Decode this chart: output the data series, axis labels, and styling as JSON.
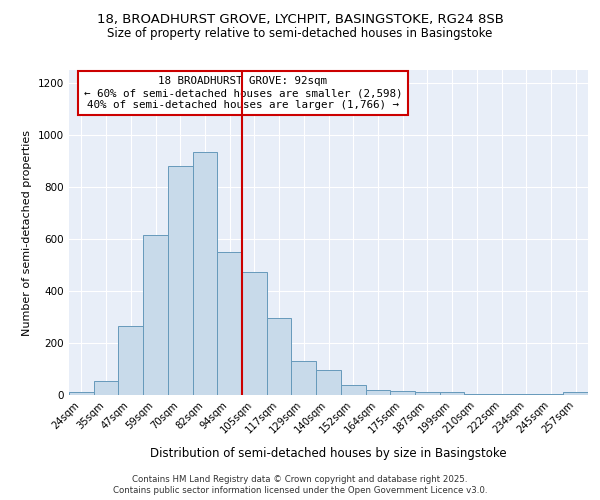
{
  "title1": "18, BROADHURST GROVE, LYCHPIT, BASINGSTOKE, RG24 8SB",
  "title2": "Size of property relative to semi-detached houses in Basingstoke",
  "xlabel": "Distribution of semi-detached houses by size in Basingstoke",
  "ylabel": "Number of semi-detached properties",
  "categories": [
    "24sqm",
    "35sqm",
    "47sqm",
    "59sqm",
    "70sqm",
    "82sqm",
    "94sqm",
    "105sqm",
    "117sqm",
    "129sqm",
    "140sqm",
    "152sqm",
    "164sqm",
    "175sqm",
    "187sqm",
    "199sqm",
    "210sqm",
    "222sqm",
    "234sqm",
    "245sqm",
    "257sqm"
  ],
  "bar_values": [
    10,
    55,
    265,
    615,
    880,
    935,
    550,
    475,
    295,
    130,
    95,
    40,
    20,
    15,
    10,
    10,
    5,
    5,
    5,
    5,
    10
  ],
  "annotation_text1": "18 BROADHURST GROVE: 92sqm",
  "annotation_text2": "← 60% of semi-detached houses are smaller (2,598)",
  "annotation_text3": "40% of semi-detached houses are larger (1,766) →",
  "bar_color": "#c8daea",
  "bar_edge_color": "#6699bb",
  "highlight_color": "#cc0000",
  "bg_color": "#ffffff",
  "plot_bg": "#e8eef8",
  "ylim": [
    0,
    1250
  ],
  "yticks": [
    0,
    200,
    400,
    600,
    800,
    1000,
    1200
  ],
  "red_line_index": 6,
  "footer1": "Contains HM Land Registry data © Crown copyright and database right 2025.",
  "footer2": "Contains public sector information licensed under the Open Government Licence v3.0."
}
